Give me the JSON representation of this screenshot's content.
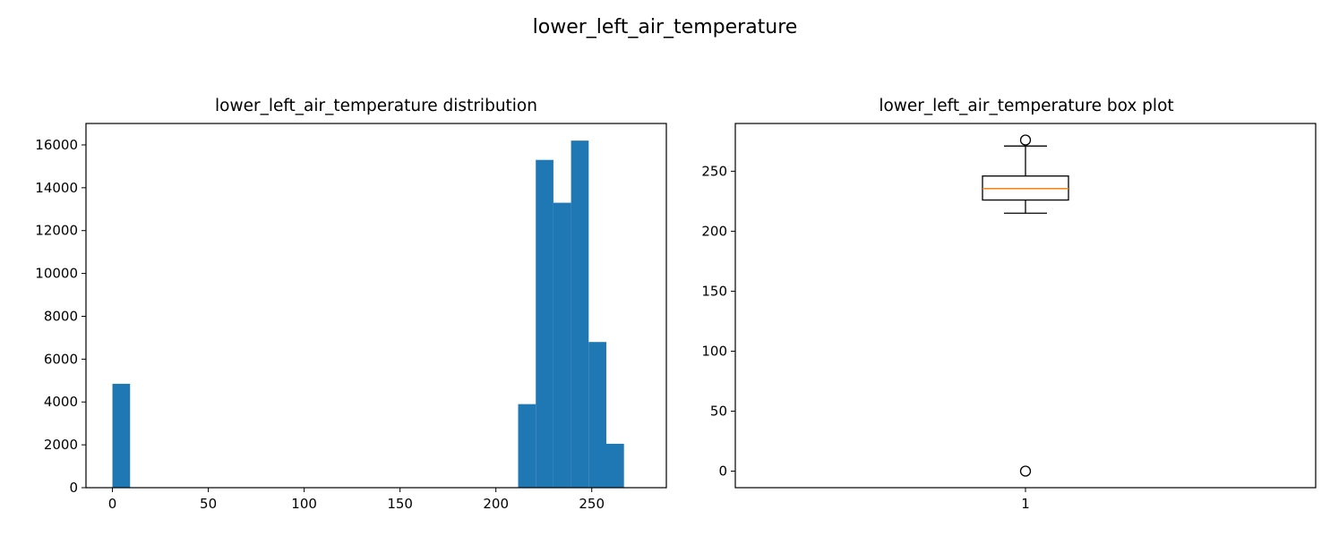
{
  "figure": {
    "suptitle": "lower_left_air_temperature"
  },
  "chart_data": [
    {
      "type": "bar",
      "subtype": "histogram",
      "title": "lower_left_air_temperature distribution",
      "xlabel": "",
      "ylabel": "",
      "xlim": [
        -13.8,
        288.9
      ],
      "ylim": [
        0,
        17000
      ],
      "xticks": [
        0,
        50,
        100,
        150,
        200,
        250
      ],
      "yticks": [
        0,
        2000,
        4000,
        6000,
        8000,
        10000,
        12000,
        14000,
        16000
      ],
      "bin_width": 9.2,
      "bins": [
        {
          "x0": 0,
          "x1": 9.2,
          "count": 4850
        },
        {
          "x0": 211.6,
          "x1": 220.8,
          "count": 3900
        },
        {
          "x0": 220.8,
          "x1": 230.0,
          "count": 15300
        },
        {
          "x0": 230.0,
          "x1": 239.2,
          "count": 13300
        },
        {
          "x0": 239.2,
          "x1": 248.4,
          "count": 16200
        },
        {
          "x0": 248.4,
          "x1": 257.6,
          "count": 6800
        },
        {
          "x0": 257.6,
          "x1": 266.8,
          "count": 2050
        }
      ],
      "color": "#1f77b4",
      "grid": false
    },
    {
      "type": "boxplot",
      "title": "lower_left_air_temperature box plot",
      "xlabel": "",
      "ylabel": "",
      "categories": [
        "1"
      ],
      "ylim": [
        -13.8,
        289.8
      ],
      "yticks": [
        0,
        50,
        100,
        150,
        200,
        250
      ],
      "box": {
        "q1": 226,
        "median": 235.5,
        "q3": 246,
        "whisker_low": 215,
        "whisker_high": 271
      },
      "fliers": [
        276,
        0
      ],
      "median_color": "#ff7f0e",
      "grid": false
    }
  ]
}
